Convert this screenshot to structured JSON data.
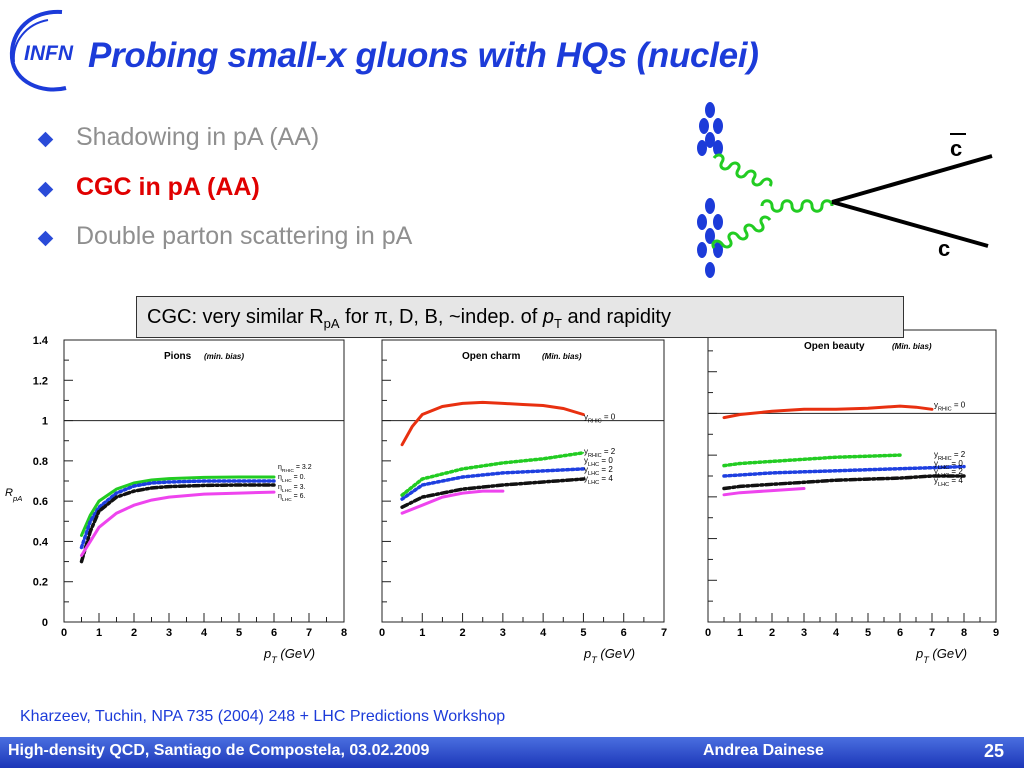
{
  "slide": {
    "title": "Probing small-x gluons with HQs (nuclei)",
    "logo_text": "INFN",
    "bullets": [
      {
        "text": "Shadowing in pA (AA)",
        "style": "gray"
      },
      {
        "text": "CGC in pA (AA)",
        "style": "red"
      },
      {
        "text": "Double parton scattering in pA",
        "style": "gray"
      }
    ],
    "callout": {
      "prefix": "CGC: very similar R",
      "sub1": "pA",
      "mid": " for π, D, B, ~indep. of ",
      "italic": "p",
      "sub2": "T",
      "suffix": " and rapidity"
    },
    "diagram": {
      "quark_top": "c",
      "quark_bottom": "c"
    },
    "reference": "Kharzeev, Tuchin, NPA 735 (2004) 248 + LHC Predictions Workshop",
    "footer": {
      "left": "High-density QCD, Santiago de Compostela, 03.02.2009",
      "author": "Andrea Dainese",
      "page": "25"
    }
  },
  "colors": {
    "title": "#1c3bd9",
    "accent_red": "#e00000",
    "footer": "#2a48cc",
    "curve_red": "#e83010",
    "curve_green": "#22cc22",
    "curve_blue": "#1e3fe0",
    "curve_black": "#111111",
    "curve_magenta": "#ee44ee"
  },
  "chart_data": [
    {
      "type": "line",
      "title": "Pions",
      "subtitle": "(min. bias)",
      "ylabel": "R_pA",
      "xlabel": "p_T (GeV)",
      "xlim": [
        0,
        8
      ],
      "ylim": [
        0,
        1.4
      ],
      "xticks": [
        "0",
        "1",
        "2",
        "3",
        "4",
        "5",
        "6",
        "7",
        "8"
      ],
      "yticks": [
        "0",
        "0.2",
        "0.4",
        "0.6",
        "0.8",
        "1",
        "1.2",
        "1.4"
      ],
      "reference_line": 1,
      "series": [
        {
          "name": "η_RHIC = 3.2",
          "color": "#22cc22",
          "dash": "solid",
          "x": [
            0.5,
            0.75,
            1,
            1.5,
            2,
            2.5,
            3,
            4,
            5,
            6
          ],
          "y": [
            0.43,
            0.53,
            0.6,
            0.66,
            0.69,
            0.705,
            0.712,
            0.718,
            0.72,
            0.72
          ]
        },
        {
          "name": "η_LHC = 0.",
          "color": "#1e3fe0",
          "dash": "dot",
          "x": [
            0.5,
            0.75,
            1,
            1.5,
            2,
            2.5,
            3,
            4,
            5,
            6
          ],
          "y": [
            0.37,
            0.5,
            0.57,
            0.64,
            0.675,
            0.69,
            0.695,
            0.7,
            0.7,
            0.7
          ]
        },
        {
          "name": "η_LHC = 3.",
          "color": "#111111",
          "dash": "dashdot",
          "x": [
            0.5,
            0.75,
            1,
            1.5,
            2,
            2.5,
            3,
            4,
            5,
            6
          ],
          "y": [
            0.3,
            0.45,
            0.55,
            0.62,
            0.65,
            0.665,
            0.672,
            0.678,
            0.68,
            0.68
          ]
        },
        {
          "name": "η_LHC = 6.",
          "color": "#ee44ee",
          "dash": "solid",
          "x": [
            0.5,
            0.75,
            1,
            1.5,
            2,
            2.5,
            3,
            4,
            5,
            6
          ],
          "y": [
            0.33,
            0.4,
            0.47,
            0.54,
            0.58,
            0.605,
            0.62,
            0.635,
            0.64,
            0.645
          ]
        }
      ]
    },
    {
      "type": "line",
      "title": "Open charm",
      "subtitle": "(Min. bias)",
      "xlabel": "p_T (GeV)",
      "xlim": [
        0,
        7
      ],
      "ylim": [
        0,
        1.4
      ],
      "xticks": [
        "0",
        "1",
        "2",
        "3",
        "4",
        "5",
        "6",
        "7"
      ],
      "reference_line": 1,
      "series": [
        {
          "name": "y_RHIC = 0",
          "color": "#e83010",
          "dash": "solid",
          "x": [
            0.5,
            0.75,
            1,
            1.5,
            2,
            2.5,
            3,
            3.5,
            4,
            4.5,
            5
          ],
          "y": [
            0.88,
            0.97,
            1.03,
            1.07,
            1.085,
            1.09,
            1.085,
            1.08,
            1.075,
            1.06,
            1.03
          ]
        },
        {
          "name": "y_RHIC = 2",
          "color": "#22cc22",
          "dash": "dot",
          "x": [
            0.5,
            1,
            2,
            3,
            4,
            5
          ],
          "y": [
            0.63,
            0.71,
            0.76,
            0.79,
            0.81,
            0.84
          ]
        },
        {
          "name": "y_LHC = 0",
          "color": "#1e3fe0",
          "dash": "dot",
          "x": [
            0.5,
            1,
            2,
            3,
            4,
            5
          ],
          "y": [
            0.61,
            0.68,
            0.72,
            0.74,
            0.75,
            0.76
          ]
        },
        {
          "name": "y_LHC = 2",
          "color": "#111111",
          "dash": "dashdot",
          "x": [
            0.5,
            1,
            2,
            3,
            4,
            5
          ],
          "y": [
            0.57,
            0.62,
            0.66,
            0.68,
            0.695,
            0.71
          ]
        },
        {
          "name": "y_LHC = 4",
          "color": "#ee44ee",
          "dash": "solid",
          "x": [
            0.5,
            1,
            1.5,
            2,
            2.5,
            3
          ],
          "y": [
            0.54,
            0.58,
            0.62,
            0.64,
            0.65,
            0.65
          ]
        }
      ]
    },
    {
      "type": "line",
      "title": "Open beauty",
      "subtitle": "(Min. bias)",
      "xlabel": "p_T (GeV)",
      "xlim": [
        0,
        9
      ],
      "ylim": [
        0,
        1.4
      ],
      "xticks": [
        "0",
        "1",
        "2",
        "3",
        "4",
        "5",
        "6",
        "7",
        "8",
        "9"
      ],
      "reference_line": 1,
      "series": [
        {
          "name": "y_RHIC = 0",
          "color": "#e83010",
          "dash": "solid",
          "x": [
            0.5,
            1,
            2,
            3,
            4,
            5,
            6,
            6.5,
            7
          ],
          "y": [
            0.98,
            0.995,
            1.01,
            1.02,
            1.02,
            1.025,
            1.035,
            1.03,
            1.02
          ]
        },
        {
          "name": "y_RHIC = 2",
          "color": "#22cc22",
          "dash": "dot",
          "x": [
            0.5,
            1,
            2,
            3,
            4,
            5,
            6
          ],
          "y": [
            0.75,
            0.76,
            0.77,
            0.78,
            0.79,
            0.795,
            0.8
          ]
        },
        {
          "name": "y_LHC = 0",
          "color": "#1e3fe0",
          "dash": "dot",
          "x": [
            0.5,
            1,
            2,
            3,
            4,
            5,
            6,
            7,
            8
          ],
          "y": [
            0.7,
            0.705,
            0.715,
            0.72,
            0.725,
            0.73,
            0.735,
            0.74,
            0.745
          ]
        },
        {
          "name": "y_LHC = 2",
          "color": "#111111",
          "dash": "dashdot",
          "x": [
            0.5,
            1,
            2,
            3,
            4,
            5,
            6,
            7,
            8
          ],
          "y": [
            0.64,
            0.65,
            0.66,
            0.67,
            0.68,
            0.685,
            0.69,
            0.7,
            0.7
          ]
        },
        {
          "name": "y_LHC = 4",
          "color": "#ee44ee",
          "dash": "solid",
          "x": [
            0.5,
            1,
            2,
            3
          ],
          "y": [
            0.61,
            0.62,
            0.63,
            0.64
          ]
        }
      ]
    }
  ]
}
